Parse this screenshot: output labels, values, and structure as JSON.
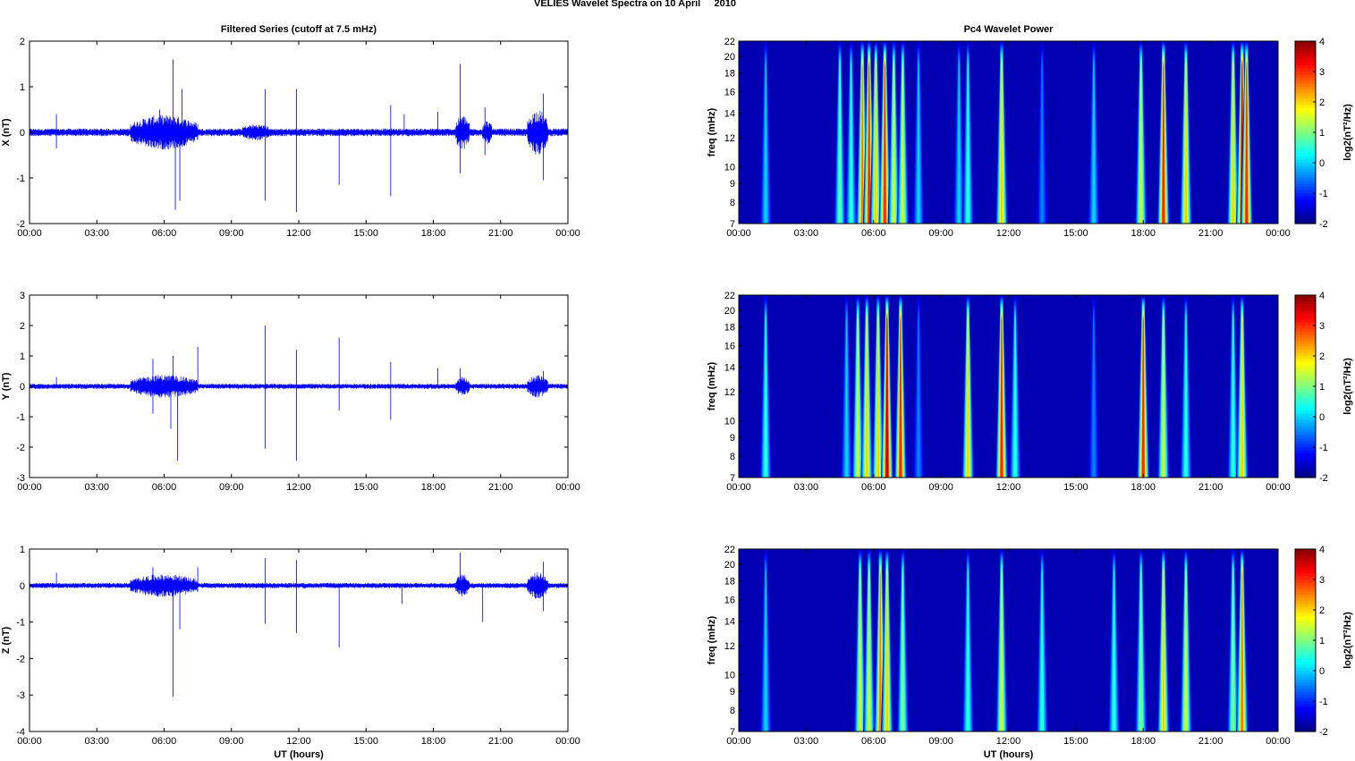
{
  "title": "VELIES Wavelet Spectra on 10 April     2010",
  "chart_data": [
    {
      "type": "line",
      "title": "Filtered Series (cutoff at 7.5 mHz)",
      "xlabel": "",
      "ylabel": "X (nT)",
      "xlim": [
        0,
        24
      ],
      "ylim": [
        -2,
        2
      ],
      "yticks": [
        -2,
        -1,
        0,
        1,
        2
      ],
      "xticklabels": [
        "00:00",
        "03:00",
        "06:00",
        "09:00",
        "12:00",
        "15:00",
        "18:00",
        "21:00",
        "00:00"
      ],
      "color": "#0000ff",
      "noise_amplitude": 0.07,
      "bursts": [
        [
          4.5,
          7.5,
          0.25
        ],
        [
          9.5,
          10.7,
          0.08
        ],
        [
          19,
          19.6,
          0.25
        ],
        [
          20.2,
          20.6,
          0.15
        ],
        [
          22.2,
          23.1,
          0.35
        ]
      ],
      "spikes": [
        [
          1.2,
          0.4
        ],
        [
          1.2,
          -0.35
        ],
        [
          6.4,
          1.6
        ],
        [
          6.5,
          -1.7
        ],
        [
          6.7,
          -1.5
        ],
        [
          6.8,
          0.95
        ],
        [
          5.8,
          0.5
        ],
        [
          10.5,
          0.95
        ],
        [
          10.5,
          -1.5
        ],
        [
          11.9,
          0.95
        ],
        [
          11.9,
          -1.75
        ],
        [
          13.8,
          -1.15
        ],
        [
          16.1,
          0.6
        ],
        [
          16.1,
          -1.4
        ],
        [
          16.7,
          0.4
        ],
        [
          18.2,
          0.45
        ],
        [
          19.2,
          1.5
        ],
        [
          19.2,
          -0.9
        ],
        [
          20.3,
          0.55
        ],
        [
          20.3,
          -0.5
        ],
        [
          22.9,
          0.85
        ],
        [
          22.9,
          -1.05
        ]
      ]
    },
    {
      "type": "heatmap",
      "title": "Pc4 Wavelet Power",
      "ylabel": "freq (mHz)",
      "xlim": [
        0,
        24
      ],
      "ylim": [
        7,
        22
      ],
      "yscale": "log",
      "yticks": [
        7,
        8,
        9,
        10,
        12,
        14,
        16,
        18,
        20,
        22
      ],
      "xticklabels": [
        "00:00",
        "03:00",
        "06:00",
        "09:00",
        "12:00",
        "15:00",
        "18:00",
        "21:00",
        "00:00"
      ],
      "colorbar": {
        "label": "log2(nT²/Hz)",
        "range": [
          -2,
          4
        ],
        "ticks": [
          -2,
          -1,
          0,
          1,
          2,
          3,
          4
        ]
      },
      "background_power": -1.7,
      "events_hour_power": [
        [
          1.2,
          0
        ],
        [
          4.5,
          0.8
        ],
        [
          5.0,
          0.5
        ],
        [
          5.5,
          2.5
        ],
        [
          5.8,
          3
        ],
        [
          6.1,
          2
        ],
        [
          6.5,
          3
        ],
        [
          6.9,
          1.5
        ],
        [
          7.3,
          1.5
        ],
        [
          8.0,
          0
        ],
        [
          9.8,
          0
        ],
        [
          10.2,
          0.5
        ],
        [
          11.7,
          2
        ],
        [
          13.5,
          -0.5
        ],
        [
          15.8,
          0
        ],
        [
          17.9,
          1.5
        ],
        [
          18.9,
          3
        ],
        [
          19.9,
          2
        ],
        [
          22.0,
          2
        ],
        [
          22.4,
          3.5
        ],
        [
          22.6,
          3
        ]
      ]
    },
    {
      "type": "line",
      "ylabel": "Y (nT)",
      "xlim": [
        0,
        24
      ],
      "ylim": [
        -3,
        3
      ],
      "yticks": [
        -3,
        -2,
        -1,
        0,
        1,
        2,
        3
      ],
      "xticklabels": [
        "00:00",
        "03:00",
        "06:00",
        "09:00",
        "12:00",
        "15:00",
        "18:00",
        "21:00",
        "00:00"
      ],
      "color": "#0000ff",
      "noise_amplitude": 0.07,
      "bursts": [
        [
          4.5,
          7.5,
          0.25
        ],
        [
          19,
          19.6,
          0.2
        ],
        [
          22.2,
          23.1,
          0.25
        ]
      ],
      "spikes": [
        [
          1.2,
          0.3
        ],
        [
          5.5,
          0.9
        ],
        [
          5.5,
          -0.9
        ],
        [
          6.3,
          -1.4
        ],
        [
          6.4,
          1.0
        ],
        [
          6.6,
          -2.45
        ],
        [
          7.5,
          1.3
        ],
        [
          10.5,
          2.0
        ],
        [
          10.5,
          -2.05
        ],
        [
          11.9,
          1.2
        ],
        [
          11.9,
          -2.45
        ],
        [
          13.8,
          1.6
        ],
        [
          13.8,
          -0.8
        ],
        [
          16.1,
          0.8
        ],
        [
          16.1,
          -1.1
        ],
        [
          18.2,
          0.6
        ],
        [
          19.2,
          0.6
        ],
        [
          22.9,
          0.5
        ]
      ]
    },
    {
      "type": "heatmap",
      "ylabel": "freq (mHz)",
      "xlim": [
        0,
        24
      ],
      "ylim": [
        7,
        22
      ],
      "yscale": "log",
      "yticks": [
        7,
        8,
        9,
        10,
        12,
        14,
        16,
        18,
        20,
        22
      ],
      "xticklabels": [
        "00:00",
        "03:00",
        "06:00",
        "09:00",
        "12:00",
        "15:00",
        "18:00",
        "21:00",
        "00:00"
      ],
      "colorbar": {
        "label": "log2(nT²/Hz)",
        "range": [
          -2,
          4
        ],
        "ticks": [
          -2,
          -1,
          0,
          1,
          2,
          3,
          4
        ]
      },
      "background_power": -1.7,
      "events_hour_power": [
        [
          1.2,
          0.5
        ],
        [
          4.8,
          0
        ],
        [
          5.3,
          1.5
        ],
        [
          5.7,
          2
        ],
        [
          6.2,
          2
        ],
        [
          6.6,
          3.5
        ],
        [
          7.2,
          3
        ],
        [
          8.0,
          -0.5
        ],
        [
          10.2,
          2
        ],
        [
          11.7,
          3
        ],
        [
          12.3,
          0.5
        ],
        [
          15.8,
          -0.5
        ],
        [
          18.0,
          3
        ],
        [
          18.9,
          1.5
        ],
        [
          19.9,
          0.5
        ],
        [
          22.0,
          0.5
        ],
        [
          22.4,
          2
        ]
      ]
    },
    {
      "type": "line",
      "xlabel": "UT (hours)",
      "ylabel": "Z (nT)",
      "xlim": [
        0,
        24
      ],
      "ylim": [
        -4,
        1
      ],
      "yticks": [
        -4,
        -3,
        -2,
        -1,
        0,
        1
      ],
      "xticklabels": [
        "00:00",
        "03:00",
        "06:00",
        "09:00",
        "12:00",
        "15:00",
        "18:00",
        "21:00",
        "00:00"
      ],
      "color": "#0000ff",
      "noise_amplitude": 0.06,
      "bursts": [
        [
          4.5,
          7.5,
          0.2
        ],
        [
          19,
          19.6,
          0.2
        ],
        [
          22.2,
          23.1,
          0.25
        ]
      ],
      "spikes": [
        [
          1.2,
          0.35
        ],
        [
          5.5,
          0.5
        ],
        [
          6.4,
          -3.05
        ],
        [
          6.7,
          -1.2
        ],
        [
          7.5,
          0.5
        ],
        [
          10.5,
          0.75
        ],
        [
          10.5,
          -1.05
        ],
        [
          11.9,
          0.7
        ],
        [
          11.9,
          -1.3
        ],
        [
          13.8,
          -1.7
        ],
        [
          16.6,
          -0.5
        ],
        [
          19.2,
          0.9
        ],
        [
          20.2,
          -1.0
        ],
        [
          22.9,
          0.65
        ],
        [
          22.9,
          -0.7
        ]
      ]
    },
    {
      "type": "heatmap",
      "xlabel": "UT (hours)",
      "ylabel": "freq (mHz)",
      "xlim": [
        0,
        24
      ],
      "ylim": [
        7,
        22
      ],
      "yscale": "log",
      "yticks": [
        7,
        8,
        9,
        10,
        12,
        14,
        16,
        18,
        20,
        22
      ],
      "xticklabels": [
        "00:00",
        "03:00",
        "06:00",
        "09:00",
        "12:00",
        "15:00",
        "18:00",
        "21:00",
        "00:00"
      ],
      "colorbar": {
        "label": "log2(nT²/Hz)",
        "range": [
          -2,
          4
        ],
        "ticks": [
          -2,
          -1,
          0,
          1,
          2,
          3,
          4
        ]
      },
      "background_power": -1.7,
      "events_hour_power": [
        [
          1.2,
          0
        ],
        [
          5.4,
          1.5
        ],
        [
          5.8,
          1.5
        ],
        [
          6.3,
          2.5
        ],
        [
          6.6,
          2
        ],
        [
          7.3,
          1
        ],
        [
          10.2,
          0.5
        ],
        [
          11.7,
          1.5
        ],
        [
          13.5,
          0.5
        ],
        [
          16.7,
          0.5
        ],
        [
          17.9,
          1
        ],
        [
          18.9,
          2
        ],
        [
          19.9,
          1.5
        ],
        [
          22.0,
          1
        ],
        [
          22.4,
          2.5
        ]
      ]
    }
  ]
}
